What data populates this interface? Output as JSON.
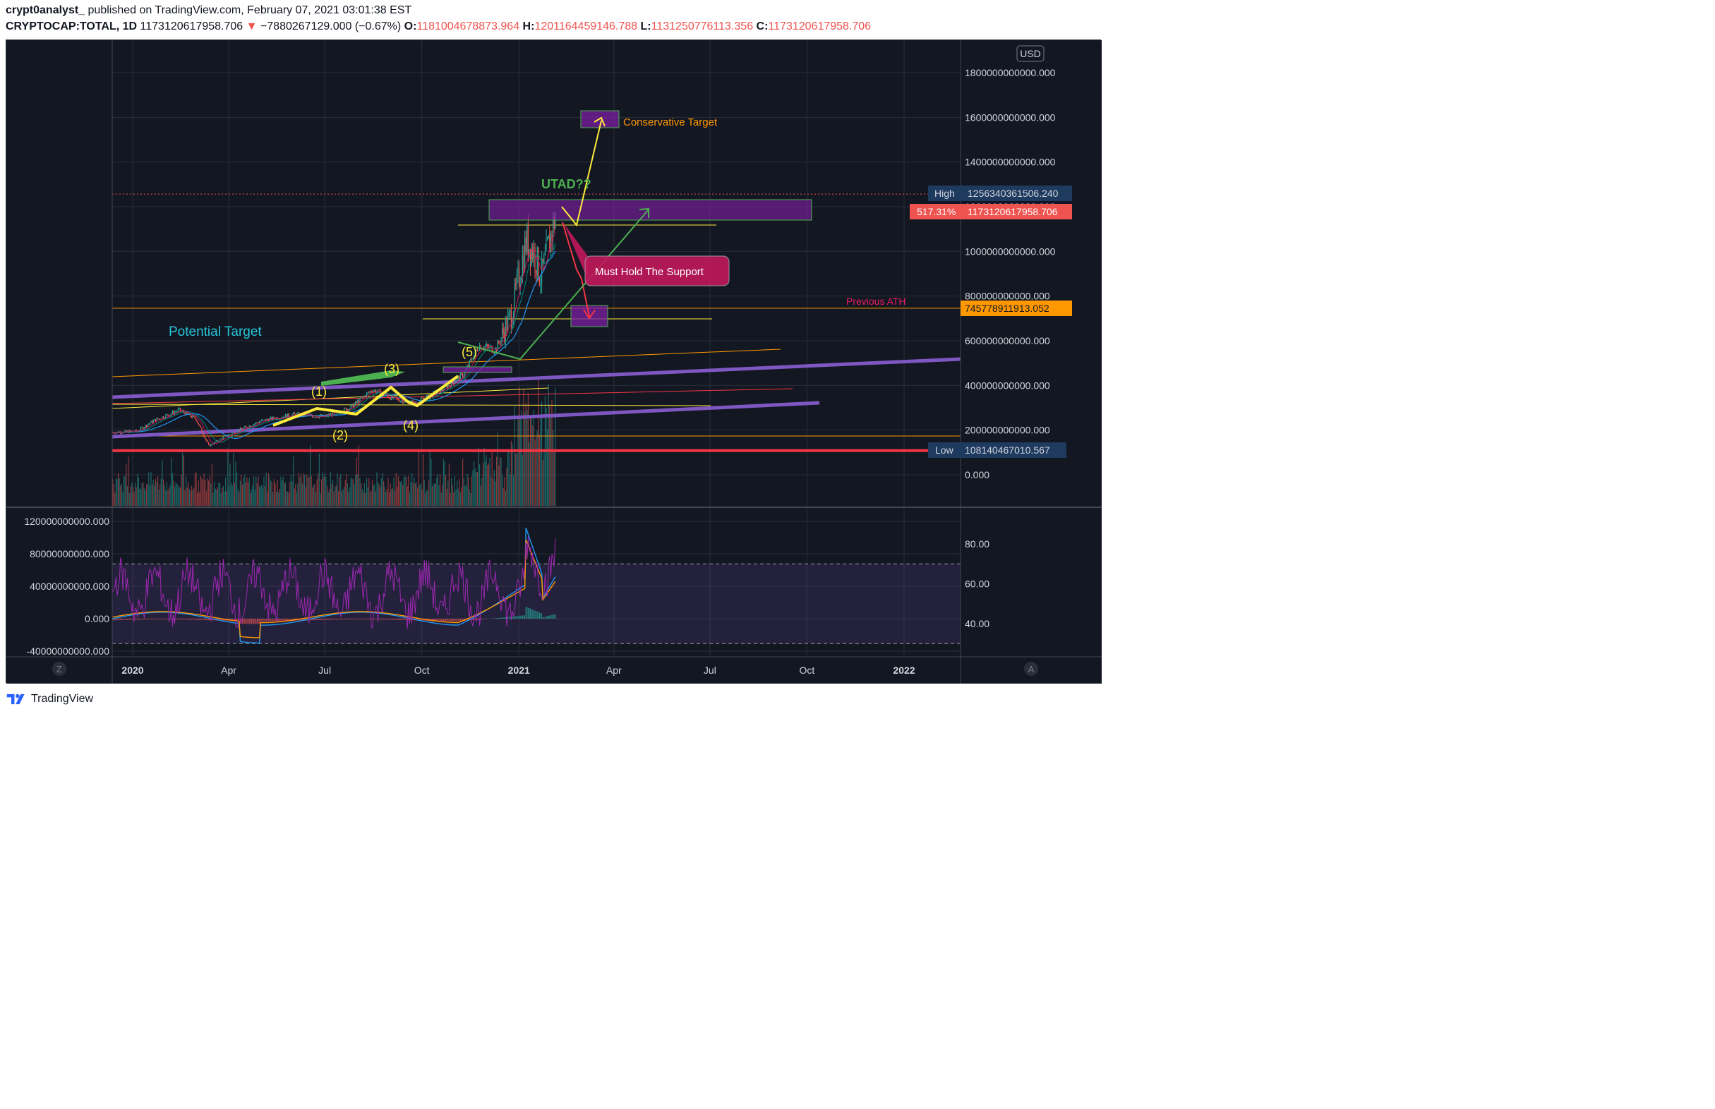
{
  "header": {
    "publisher": "crypt0analyst_",
    "published_text": "published on TradingView.com, February 07, 2021 03:01:38 EST",
    "symbol": "CRYPTOCAP:TOTAL, 1D",
    "price": "1173120617958.706",
    "change": "−7880267129.000 (−0.67%)",
    "open_label": "O:",
    "open": "1181004678873.964",
    "high_label": "H:",
    "high": "1201164459146.788",
    "low_label": "L:",
    "low": "1131250776113.356",
    "close_label": "C:",
    "close": "1173120617958.706"
  },
  "colors": {
    "background": "#131722",
    "up": "#26a69a",
    "down": "#ef5350",
    "purple_line": "#7e57c2",
    "red_support": "#f23645",
    "orange": "#ff9800",
    "yellow": "#ffeb3b",
    "green_arrow": "#4caf50",
    "rsi": "#9c27b0"
  },
  "axes": {
    "currency": "USD",
    "price_ticks": [
      {
        "v": 1800000000000,
        "label": "1800000000000.000"
      },
      {
        "v": 1600000000000,
        "label": "1600000000000.000"
      },
      {
        "v": 1400000000000,
        "label": "1400000000000.000"
      },
      {
        "v": 1200000000000,
        "label": "1200000000000.000"
      },
      {
        "v": 1000000000000,
        "label": "1000000000000.000"
      },
      {
        "v": 800000000000,
        "label": "800000000000.000"
      },
      {
        "v": 600000000000,
        "label": "600000000000.000"
      },
      {
        "v": 400000000000,
        "label": "400000000000.000"
      },
      {
        "v": 200000000000,
        "label": "200000000000.000"
      },
      {
        "v": 0,
        "label": "0.000"
      }
    ],
    "x_ticks": [
      {
        "t": 0,
        "label": "2020",
        "bold": true
      },
      {
        "t": 91,
        "label": "Apr",
        "bold": false
      },
      {
        "t": 182,
        "label": "Jul",
        "bold": false
      },
      {
        "t": 274,
        "label": "Oct",
        "bold": false
      },
      {
        "t": 366,
        "label": "2021",
        "bold": true
      },
      {
        "t": 456,
        "label": "Apr",
        "bold": false
      },
      {
        "t": 547,
        "label": "Jul",
        "bold": false
      },
      {
        "t": 639,
        "label": "Oct",
        "bold": false
      },
      {
        "t": 731,
        "label": "2022",
        "bold": true
      }
    ],
    "macd_ticks": [
      {
        "v": 120000000000,
        "label": "120000000000.000"
      },
      {
        "v": 80000000000,
        "label": "80000000000.000"
      },
      {
        "v": 40000000000,
        "label": "40000000000.000"
      },
      {
        "v": 0,
        "label": "0.000"
      },
      {
        "v": -40000000000,
        "label": "-40000000000.000"
      }
    ],
    "rsi_ticks": [
      {
        "v": 80,
        "label": "80.00"
      },
      {
        "v": 60,
        "label": "60.00"
      },
      {
        "v": 40,
        "label": "40.00"
      }
    ],
    "rsi_band": [
      30,
      70
    ],
    "corner_z": "Z",
    "corner_a": "A"
  },
  "price_labels": {
    "high_tag": "High",
    "high_value": "1256340361506.240",
    "pct_tag": "517.31%",
    "current_value": "1173120617958.706",
    "ath_value": "745778911913.052",
    "low_tag": "Low",
    "low_value": "108140467010.567"
  },
  "annotations": {
    "conservative_target": "Conservative Target",
    "utad": "UTAD??",
    "must_hold": "Must Hold The Support",
    "previous_ath": "Previous ATH",
    "potential_target": "Potential Target",
    "wave_1": "(1)",
    "wave_2": "(2)",
    "wave_3": "(3)",
    "wave_4": "(4)",
    "wave_5": "(5)"
  },
  "chart_data": {
    "type": "line",
    "title": "CRYPTOCAP:TOTAL, 1D",
    "x_axis": "date",
    "y_unit": "USD",
    "ylim": [
      -150000000000,
      1900000000000
    ],
    "xlim": [
      "2019-12-13",
      "2022-02-10"
    ],
    "series": [
      {
        "name": "CRYPTOCAP:TOTAL",
        "points": [
          [
            "2019-12-13",
            190000000000
          ],
          [
            "2020-01-05",
            195000000000
          ],
          [
            "2020-01-20",
            240000000000
          ],
          [
            "2020-02-14",
            290000000000
          ],
          [
            "2020-03-01",
            250000000000
          ],
          [
            "2020-03-13",
            130000000000
          ],
          [
            "2020-04-01",
            180000000000
          ],
          [
            "2020-05-01",
            240000000000
          ],
          [
            "2020-06-01",
            270000000000
          ],
          [
            "2020-07-01",
            260000000000
          ],
          [
            "2020-07-25",
            300000000000
          ],
          [
            "2020-08-15",
            380000000000
          ],
          [
            "2020-09-05",
            340000000000
          ],
          [
            "2020-09-25",
            320000000000
          ],
          [
            "2020-10-20",
            380000000000
          ],
          [
            "2020-11-10",
            450000000000
          ],
          [
            "2020-11-24",
            580000000000
          ],
          [
            "2020-12-10",
            560000000000
          ],
          [
            "2020-12-25",
            720000000000
          ],
          [
            "2021-01-08",
            1050000000000
          ],
          [
            "2021-01-15",
            1000000000000
          ],
          [
            "2021-01-22",
            880000000000
          ],
          [
            "2021-01-28",
            1000000000000
          ],
          [
            "2021-02-05",
            1173120617958
          ]
        ]
      }
    ],
    "levels": [
      {
        "name": "Previous ATH",
        "value": 745778911913.052
      },
      {
        "name": "Low",
        "value": 108140467010.567
      },
      {
        "name": "High",
        "value": 1256340361506.24
      }
    ],
    "grid": true,
    "lower_panes": [
      "MACD",
      "RSI"
    ]
  },
  "footer": {
    "brand": "TradingView"
  }
}
